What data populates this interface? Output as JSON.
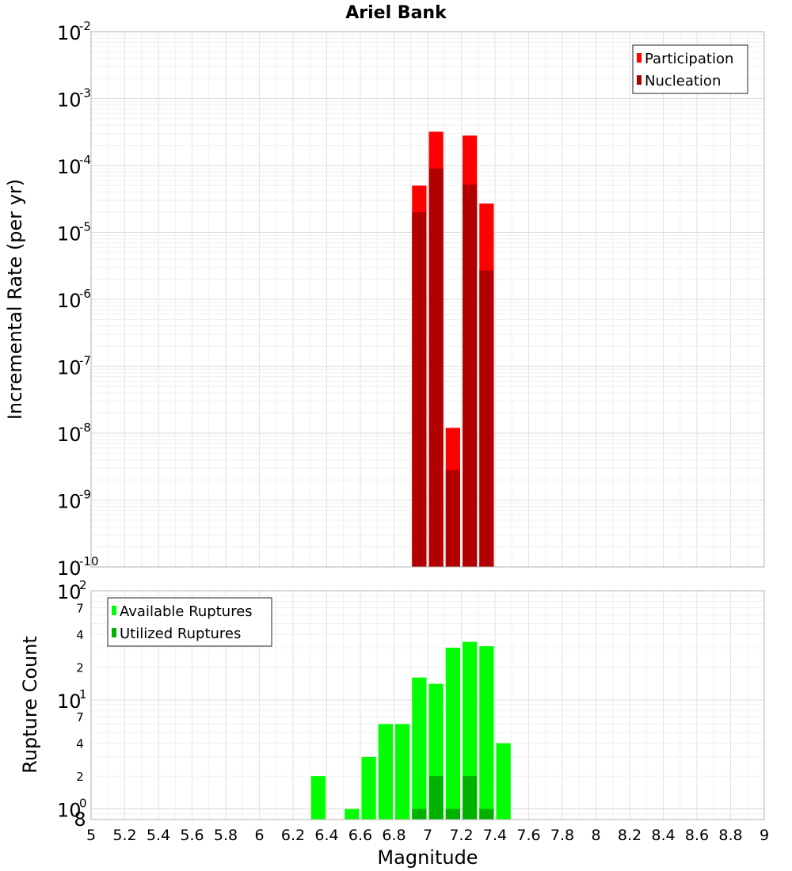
{
  "title": "Ariel Bank",
  "chart_data": [
    {
      "type": "bar",
      "panel": "top",
      "scale": "log",
      "ylabel": "Incremental Rate (per yr)",
      "xlabel": "Magnitude",
      "xlim": [
        5,
        9
      ],
      "ylim": [
        1e-10,
        0.01
      ],
      "grid": true,
      "bar_width": 0.1,
      "legend_position": "top-right",
      "y_tick_labels": [
        {
          "value": 0.01,
          "base": "10",
          "exp": "-2"
        },
        {
          "value": 0.001,
          "base": "10",
          "exp": "-3"
        },
        {
          "value": 0.0001,
          "base": "10",
          "exp": "-4"
        },
        {
          "value": 1e-05,
          "base": "10",
          "exp": "-5"
        },
        {
          "value": 1e-06,
          "base": "10",
          "exp": "-6"
        },
        {
          "value": 1e-07,
          "base": "10",
          "exp": "-7"
        },
        {
          "value": 1e-08,
          "base": "10",
          "exp": "-8"
        },
        {
          "value": 1e-09,
          "base": "10",
          "exp": "-9"
        },
        {
          "value": 1e-10,
          "base": "10",
          "exp": "-10"
        }
      ],
      "series": [
        {
          "name": "Participation",
          "color": "#ff0000",
          "x": [
            6.95,
            7.05,
            7.15,
            7.25,
            7.35
          ],
          "values": [
            5e-05,
            0.00032,
            1.2e-08,
            0.00028,
            2.7e-05
          ]
        },
        {
          "name": "Nucleation",
          "color": "#b20000",
          "x": [
            6.95,
            7.05,
            7.15,
            7.25,
            7.35
          ],
          "values": [
            2e-05,
            9e-05,
            2.8e-09,
            5.2e-05,
            2.7e-06
          ]
        }
      ]
    },
    {
      "type": "bar",
      "panel": "bottom",
      "scale": "log",
      "ylabel": "Rupture Count",
      "xlabel": "Magnitude",
      "xlim": [
        5,
        9
      ],
      "ylim": [
        0.8,
        100
      ],
      "grid": true,
      "bar_width": 0.1,
      "legend_position": "top-left",
      "y_tick_labels": [
        {
          "value": 100,
          "base": "10",
          "exp": "2"
        },
        {
          "value": 10,
          "base": "10",
          "exp": "1"
        },
        {
          "value": 1,
          "base": "10",
          "exp": "0"
        }
      ],
      "y_minor_tick_labels": [
        {
          "value": 70,
          "label": "7"
        },
        {
          "value": 40,
          "label": "4"
        },
        {
          "value": 20,
          "label": "2"
        },
        {
          "value": 7,
          "label": "7"
        },
        {
          "value": 4,
          "label": "4"
        },
        {
          "value": 2,
          "label": "2"
        },
        {
          "value": 0.8,
          "label": "8"
        }
      ],
      "series": [
        {
          "name": "Available Ruptures",
          "color": "#00ff00",
          "x": [
            6.35,
            6.55,
            6.65,
            6.75,
            6.85,
            6.95,
            7.05,
            7.15,
            7.25,
            7.35,
            7.45
          ],
          "values": [
            2,
            1,
            3,
            6,
            6,
            16,
            14,
            30,
            34,
            31,
            4
          ]
        },
        {
          "name": "Utilized Ruptures",
          "color": "#00b200",
          "x": [
            6.95,
            7.05,
            7.15,
            7.25,
            7.35
          ],
          "values": [
            1,
            2,
            1,
            2,
            1
          ]
        }
      ]
    }
  ],
  "x_tick_labels": [
    "5",
    "5.2",
    "5.4",
    "5.6",
    "5.8",
    "6",
    "6.2",
    "6.4",
    "6.6",
    "6.8",
    "7",
    "7.2",
    "7.4",
    "7.6",
    "7.8",
    "8",
    "8.2",
    "8.4",
    "8.6",
    "8.8",
    "9"
  ]
}
